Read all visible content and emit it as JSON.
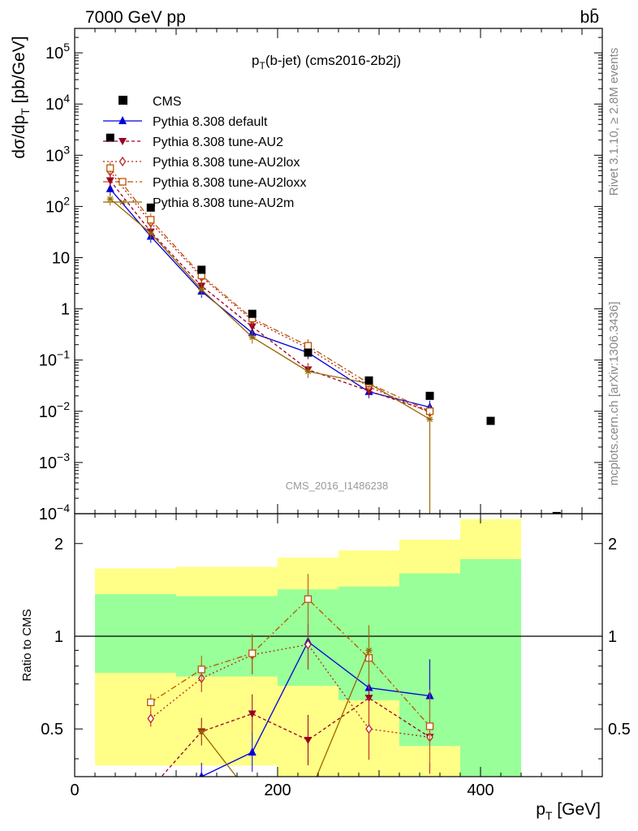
{
  "header": {
    "left": "7000 GeV pp",
    "right": "bb̄"
  },
  "plot_title": {
    "main": "p",
    "sub": "T",
    "rest": "(b-jet) (cms2016-2b2j)"
  },
  "watermark": "CMS_2016_I1486238",
  "side_labels": {
    "rivet": "Rivet 3.1.10, ≥ 2.8M events",
    "mcplots": "mcplots.cern.ch [arXiv:1306.3436]"
  },
  "axis_labels": {
    "ylabel_main": "dσ/dp_T [pb/GeV]",
    "ylabel_ratio": "Ratio to CMS",
    "xlabel": "p_T [GeV]"
  },
  "legend": {
    "cms": "CMS",
    "items": [
      "Pythia 8.308 default",
      "Pythia 8.308 tune-AU2",
      "Pythia 8.308 tune-AU2lox",
      "Pythia 8.308 tune-AU2loxx",
      "Pythia 8.308 tune-AU2m"
    ]
  },
  "colors": {
    "cms": "#000000",
    "default": "#0000dd",
    "au2": "#990022",
    "au2lox": "#bb2222",
    "au2loxx": "#bb5500",
    "au2m": "#996600",
    "band_inner": "#99ff99",
    "band_outer": "#ffff88"
  },
  "chart_data": {
    "type": "line",
    "x_axis": {
      "label": "p_T [GeV]",
      "range": [
        0,
        520
      ],
      "ticks": [
        0,
        200,
        400
      ]
    },
    "main_panel": {
      "y_scale": "log",
      "y_range": [
        0.0001,
        300000
      ],
      "y_tick_labels": [
        "10^-4",
        "10^-3",
        "10^-2",
        "10^-1",
        "1",
        "10",
        "10^2",
        "10^3",
        "10^4",
        "10^5"
      ],
      "cms": {
        "x": [
          35,
          75,
          125,
          175,
          230,
          290,
          350,
          410,
          475
        ],
        "y": [
          2200,
          95,
          5.8,
          0.8,
          0.14,
          0.04,
          0.02,
          0.0065,
          9e-05
        ]
      },
      "series": [
        {
          "name": "Pythia 8.308 default",
          "x": [
            35,
            75,
            125,
            175,
            230,
            290,
            350
          ],
          "y": [
            220,
            26,
            2.2,
            0.34,
            0.14,
            0.024,
            0.012
          ]
        },
        {
          "name": "Pythia 8.308 tune-AU2",
          "x": [
            35,
            75,
            125,
            175,
            230,
            290,
            350
          ],
          "y": [
            320,
            32,
            2.8,
            0.45,
            0.065,
            0.025,
            0.01
          ]
        },
        {
          "name": "Pythia 8.308 tune-AU2lox",
          "x": [
            35,
            75,
            125,
            175,
            230,
            290,
            350
          ],
          "y": [
            480,
            48,
            4.2,
            0.6,
            0.17,
            0.03,
            0.0095
          ]
        },
        {
          "name": "Pythia 8.308 tune-AU2loxx",
          "x": [
            35,
            75,
            125,
            175,
            230,
            290,
            350
          ],
          "y": [
            560,
            55,
            4.5,
            0.65,
            0.19,
            0.035,
            0.01
          ]
        },
        {
          "name": "Pythia 8.308 tune-AU2m",
          "x": [
            35,
            75,
            125,
            175,
            230,
            290,
            350
          ],
          "y": [
            140,
            30,
            2.4,
            0.28,
            0.06,
            0.035,
            0.007
          ]
        }
      ]
    },
    "ratio_panel": {
      "y_scale": "log",
      "y_range": [
        0.35,
        2.5
      ],
      "y_ticks": [
        0.5,
        1,
        2
      ],
      "bins": [
        [
          20,
          100
        ],
        [
          100,
          200
        ],
        [
          200,
          260
        ],
        [
          260,
          320
        ],
        [
          320,
          380
        ],
        [
          380,
          440
        ]
      ],
      "band_inner": [
        [
          0.76,
          1.37
        ],
        [
          0.74,
          1.35
        ],
        [
          0.69,
          1.42
        ],
        [
          0.62,
          1.45
        ],
        [
          0.44,
          1.6
        ],
        [
          0.32,
          1.78
        ]
      ],
      "band_outer": [
        [
          0.38,
          1.66
        ],
        [
          0.38,
          1.68
        ],
        [
          0.33,
          1.8
        ],
        [
          0.3,
          1.9
        ],
        [
          0.3,
          2.06
        ],
        [
          0.3,
          2.4
        ]
      ],
      "series": [
        {
          "name": "Pythia 8.308 default",
          "x": [
            75,
            125,
            175,
            230,
            290,
            350
          ],
          "y": [
            0.28,
            0.35,
            0.42,
            0.96,
            0.68,
            0.64
          ]
        },
        {
          "name": "Pythia 8.308 tune-AU2",
          "x": [
            75,
            125,
            175,
            230,
            290,
            350
          ],
          "y": [
            0.32,
            0.49,
            0.56,
            0.46,
            0.63,
            0.47
          ]
        },
        {
          "name": "Pythia 8.308 tune-AU2lox",
          "x": [
            75,
            125,
            175,
            230,
            290,
            350
          ],
          "y": [
            0.54,
            0.73,
            0.87,
            0.94,
            0.5,
            0.47
          ]
        },
        {
          "name": "Pythia 8.308 tune-AU2loxx",
          "x": [
            75,
            125,
            175,
            230,
            290,
            350
          ],
          "y": [
            0.61,
            0.78,
            0.88,
            1.32,
            0.85,
            0.51
          ]
        },
        {
          "name": "Pythia 8.308 tune-AU2m",
          "x": [
            125,
            175,
            230,
            290
          ],
          "y": [
            0.49,
            0.3,
            0.3,
            0.9
          ]
        }
      ]
    }
  }
}
